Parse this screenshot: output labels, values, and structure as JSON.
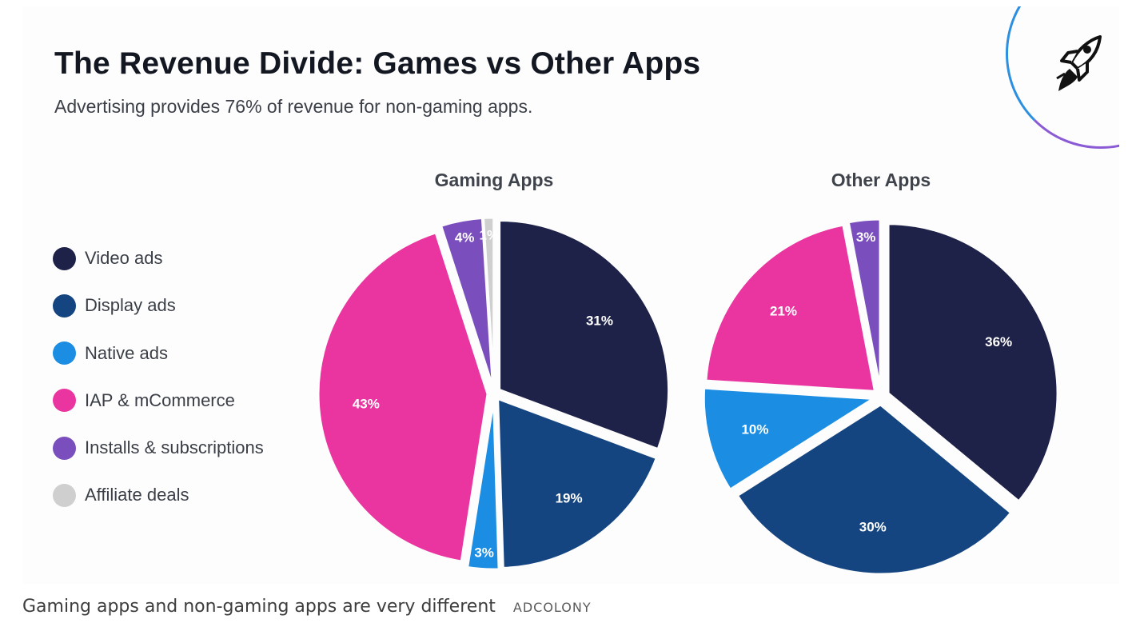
{
  "header": {
    "title": "The Revenue Divide: Games vs Other Apps",
    "subtitle": "Advertising provides 76% of revenue for non-gaming apps."
  },
  "legend": {
    "items": [
      {
        "label": "Video ads",
        "color": "#1e2248"
      },
      {
        "label": "Display ads",
        "color": "#154580"
      },
      {
        "label": "Native ads",
        "color": "#1b8de3"
      },
      {
        "label": "IAP & mCommerce",
        "color": "#ea35a0"
      },
      {
        "label": "Installs & subscriptions",
        "color": "#7a4fbd"
      },
      {
        "label": "Affiliate deals",
        "color": "#cfcfcf"
      }
    ]
  },
  "chart_data": [
    {
      "type": "pie",
      "title": "Gaming Apps",
      "categories": [
        "Video ads",
        "Display ads",
        "Native ads",
        "IAP & mCommerce",
        "Installs & subscriptions",
        "Affiliate deals"
      ],
      "values": [
        31,
        19,
        3,
        43,
        4,
        1
      ],
      "labels": [
        "31%",
        "19%",
        "3%",
        "43%",
        "4%",
        "1%"
      ],
      "colors": [
        "#1e2248",
        "#154580",
        "#1b8de3",
        "#ea35a0",
        "#7a4fbd",
        "#cfcfcf"
      ],
      "start_angle_deg": 0,
      "direction": "clockwise",
      "exploded": true
    },
    {
      "type": "pie",
      "title": "Other Apps",
      "categories": [
        "Video ads",
        "Display ads",
        "Native ads",
        "IAP & mCommerce",
        "Installs & subscriptions",
        "Affiliate deals"
      ],
      "values": [
        36,
        30,
        10,
        21,
        3,
        0
      ],
      "labels": [
        "36%",
        "30%",
        "10%",
        "21%",
        "3%",
        ""
      ],
      "colors": [
        "#1e2248",
        "#154580",
        "#1b8de3",
        "#ea35a0",
        "#7a4fbd",
        "#cfcfcf"
      ],
      "start_angle_deg": 0,
      "direction": "clockwise",
      "exploded": true
    }
  ],
  "caption": {
    "text": "Gaming apps and non-gaming apps are very different",
    "credit": "ADCOLONY"
  },
  "logo": {
    "icon": "rocket-icon"
  }
}
